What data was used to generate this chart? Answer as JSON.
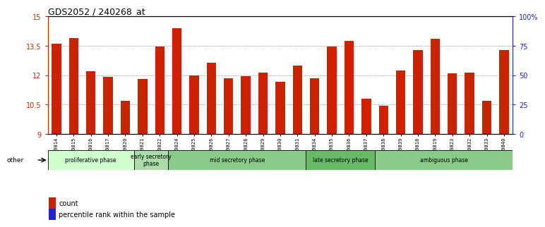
{
  "title": "GDS2052 / 240268_at",
  "samples": [
    "GSM109814",
    "GSM109815",
    "GSM109816",
    "GSM109817",
    "GSM109820",
    "GSM109821",
    "GSM109822",
    "GSM109824",
    "GSM109825",
    "GSM109826",
    "GSM109827",
    "GSM109828",
    "GSM109829",
    "GSM109830",
    "GSM109831",
    "GSM109834",
    "GSM109835",
    "GSM109836",
    "GSM109837",
    "GSM109838",
    "GSM109839",
    "GSM109818",
    "GSM109819",
    "GSM109823",
    "GSM109832",
    "GSM109833",
    "GSM109840"
  ],
  "count_values": [
    13.6,
    13.9,
    12.2,
    11.9,
    10.7,
    11.8,
    13.45,
    14.4,
    12.0,
    12.65,
    11.85,
    11.95,
    12.15,
    11.65,
    12.5,
    11.85,
    13.45,
    13.75,
    10.8,
    10.45,
    12.25,
    13.3,
    13.85,
    12.1,
    12.15,
    10.7,
    13.3
  ],
  "percentile_values": [
    1.6,
    1.6,
    1.1,
    1.1,
    1.1,
    1.1,
    1.6,
    1.6,
    1.1,
    1.6,
    1.1,
    1.1,
    1.1,
    1.1,
    1.1,
    1.1,
    1.1,
    1.6,
    1.1,
    1.1,
    1.1,
    1.6,
    1.6,
    1.1,
    1.1,
    1.1,
    1.1
  ],
  "bar_bottom": 9.0,
  "ylim": [
    9.0,
    15.0
  ],
  "yticks": [
    9.0,
    10.5,
    12.0,
    13.5,
    15.0
  ],
  "ytick_labels": [
    "9",
    "10.5",
    "12",
    "13.5",
    "15"
  ],
  "right_yticks": [
    9.0,
    10.5,
    12.0,
    13.5,
    15.0
  ],
  "right_ytick_labels": [
    "0",
    "25",
    "50",
    "75",
    "100%"
  ],
  "count_color": "#cc2200",
  "percentile_color": "#2222cc",
  "grid_color": "#555555",
  "phase_groups": [
    {
      "label": "proliferative phase",
      "start": 0,
      "end": 5,
      "color": "#ccffcc"
    },
    {
      "label": "early secretory\nphase",
      "start": 5,
      "end": 7,
      "color": "#aaddaa"
    },
    {
      "label": "mid secretory phase",
      "start": 7,
      "end": 15,
      "color": "#88cc88"
    },
    {
      "label": "late secretory phase",
      "start": 15,
      "end": 19,
      "color": "#66bb66"
    },
    {
      "label": "ambiguous phase",
      "start": 19,
      "end": 27,
      "color": "#88cc88"
    }
  ],
  "legend_count_label": "count",
  "legend_pct_label": "percentile rank within the sample",
  "other_label": "other",
  "bar_width": 0.55,
  "bg_color": "#ffffff",
  "axis_color_left": "#cc2200",
  "axis_color_right": "#2222cc"
}
